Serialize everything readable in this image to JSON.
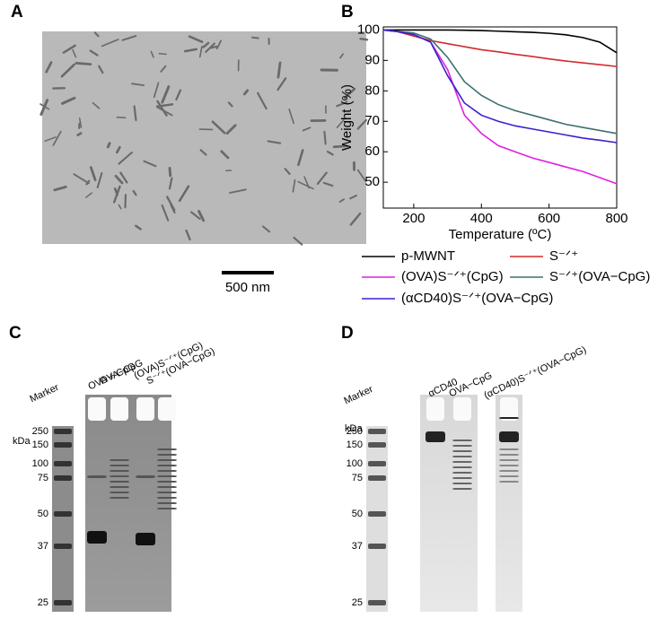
{
  "panel_a": {
    "label": "A",
    "scale_bar": "500 nm"
  },
  "chart_data": {
    "type": "line",
    "panel_label": "B",
    "xlabel": "Temperature (ºC)",
    "ylabel": "Weight (%)",
    "x": [
      110,
      150,
      200,
      250,
      300,
      350,
      400,
      450,
      500,
      550,
      600,
      650,
      700,
      750,
      800
    ],
    "xlim": [
      110,
      800
    ],
    "xticks": [
      200,
      400,
      600,
      800
    ],
    "ylim": [
      41.5,
      101
    ],
    "yticks": [
      50,
      60,
      70,
      80,
      90,
      100
    ],
    "legend": "bottom",
    "series": [
      {
        "name": "p-MWNT",
        "color": "#000000",
        "values": [
          100,
          100,
          100,
          100,
          100,
          99.9,
          99.8,
          99.6,
          99.4,
          99.2,
          98.9,
          98.4,
          97.5,
          96,
          92.5
        ]
      },
      {
        "name": "S⁻ᐟ⁺",
        "color": "#d42a2a",
        "values": [
          100,
          99.5,
          98,
          96.5,
          95.5,
          94.5,
          93.5,
          92.8,
          92,
          91.3,
          90.5,
          89.8,
          89.2,
          88.6,
          88
        ]
      },
      {
        "name": "(OVA)S⁻ᐟ⁺(CpG)",
        "color": "#e020e0",
        "values": [
          100,
          99.5,
          98.5,
          96,
          87,
          72,
          66,
          62,
          60,
          58,
          56.5,
          55,
          53.5,
          51.5,
          49.5
        ]
      },
      {
        "name": "S⁻ᐟ⁺(OVA−CpG)",
        "color": "#3d7070",
        "values": [
          100,
          99.5,
          99,
          97,
          91,
          83,
          78.5,
          75.5,
          73.5,
          72,
          70.5,
          69,
          68,
          67,
          66
        ]
      },
      {
        "name": "(αCD40)S⁻ᐟ⁺(OVA−CpG)",
        "color": "#3a20d0",
        "values": [
          100,
          99.5,
          98.5,
          96,
          85,
          76,
          72,
          70,
          68.5,
          67.5,
          66.5,
          65.5,
          64.5,
          63.8,
          63
        ]
      }
    ]
  },
  "panel_c": {
    "label": "C",
    "marker": "Marker",
    "unit": "kDa",
    "lanes": [
      "OVA + CpG",
      "OVA−CpG",
      "(OVA)S⁻ᐟ⁺(CpG)",
      "S⁻ᐟ⁺(OVA−CpG)"
    ],
    "ladder": [
      250,
      150,
      100,
      75,
      50,
      37,
      25
    ]
  },
  "panel_d": {
    "label": "D",
    "marker": "Marker",
    "unit": "kDa",
    "lanes": [
      "αCD40",
      "OVA−CpG",
      "(αCD40)S⁻ᐟ⁺(OVA−CpG)"
    ],
    "ladder": [
      250,
      150,
      100,
      75,
      50,
      37,
      25
    ]
  }
}
